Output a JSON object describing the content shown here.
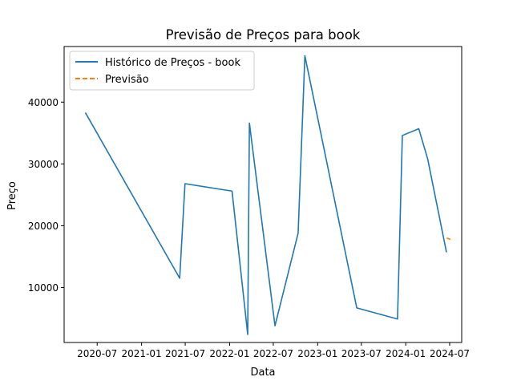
{
  "chart_data": {
    "type": "line",
    "title": "Previsão de Preços para book",
    "xlabel": "Data",
    "ylabel": "Preço",
    "x_ticks": [
      "2020-07",
      "2021-01",
      "2021-07",
      "2022-01",
      "2022-07",
      "2023-01",
      "2023-07",
      "2024-01",
      "2024-07"
    ],
    "y_ticks": [
      10000,
      20000,
      30000,
      40000
    ],
    "y_tick_labels": [
      "10000",
      "20000",
      "30000",
      "40000"
    ],
    "xlim": [
      "2020-02-15",
      "2024-08-20"
    ],
    "ylim": [
      1100,
      49000
    ],
    "legend_position": "top-left",
    "series": [
      {
        "name": "Histórico de Preços - book",
        "color": "#1f77b4",
        "style": "solid",
        "points": [
          [
            "2020-05-13",
            38300
          ],
          [
            "2021-06-08",
            11500
          ],
          [
            "2021-06-30",
            26800
          ],
          [
            "2022-01-11",
            25600
          ],
          [
            "2022-03-17",
            2400
          ],
          [
            "2022-03-24",
            36600
          ],
          [
            "2022-07-08",
            3800
          ],
          [
            "2022-10-12",
            18800
          ],
          [
            "2022-11-09",
            47500
          ],
          [
            "2023-06-12",
            6700
          ],
          [
            "2023-11-28",
            4900
          ],
          [
            "2023-12-18",
            34600
          ],
          [
            "2024-02-24",
            35700
          ],
          [
            "2024-04-01",
            30800
          ],
          [
            "2024-06-18",
            15700
          ]
        ]
      },
      {
        "name": "Previsão",
        "color": "#ff7f0e",
        "style": "dashed",
        "points": [
          [
            "2024-06-19",
            18000
          ],
          [
            "2024-07-11",
            17700
          ]
        ]
      }
    ]
  }
}
